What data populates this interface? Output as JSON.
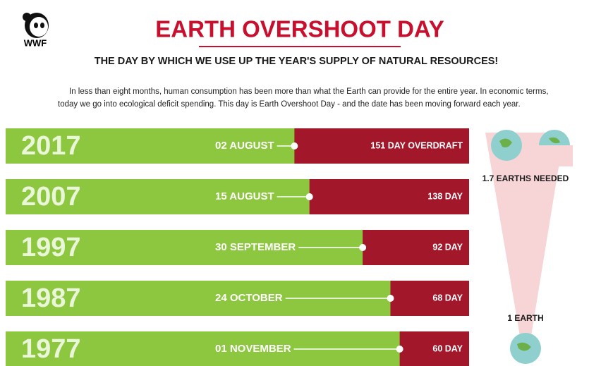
{
  "logo": "WWF",
  "chart_data": {
    "type": "bar",
    "title": "EARTH OVERSHOOT DAY",
    "subtitle": "THE DAY BY WHICH WE USE UP THE YEAR'S SUPPLY OF NATURAL RESOURCES!",
    "description": [
      "In less than eight months, human consumption has been more than what the Earth can provide for the entire year. In economic terms,",
      "today we go into ecological deficit spending. This day is Earth Overshoot Day - and the date has been moving forward each year."
    ],
    "categories": [
      "2017",
      "2007",
      "1997",
      "1987",
      "1977"
    ],
    "dates": [
      "02 AUGUST",
      "15 AUGUST",
      "30 SEPTEMBER",
      "24 OCTOBER",
      "01 NOVEMBER"
    ],
    "values": [
      151,
      138,
      92,
      68,
      60
    ],
    "value_labels": [
      "151 DAY OVERDRAFT",
      "138 DAY",
      "92 DAY",
      "68 DAY",
      "60 DAY"
    ],
    "colors": [
      "#8dc63f",
      "#a3172b"
    ],
    "annotations": [
      "1.7 EARTHS NEEDED",
      "1 EARTH"
    ]
  }
}
